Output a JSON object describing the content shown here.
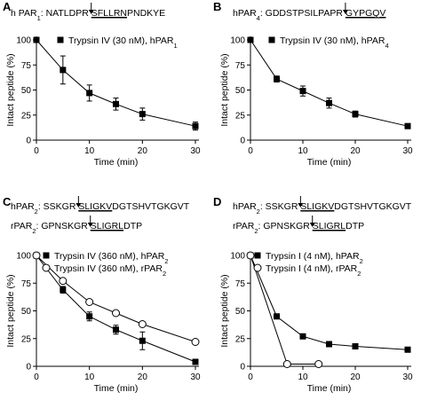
{
  "chart_data": [
    {
      "panel": "A",
      "type": "line",
      "sequence_lines": [
        {
          "parts": [
            {
              "text": "h PAR"
            },
            {
              "text": "1",
              "sub": true
            },
            {
              "text": ": NATLDPR "
            },
            {
              "text": "SFLLRN",
              "underline": true
            },
            {
              "text": "PNDKYE"
            }
          ],
          "cleavage_after": 2
        }
      ],
      "xlabel": "Time (min)",
      "ylabel": "Intact peptide (%)",
      "xlim": [
        0,
        30
      ],
      "ylim": [
        0,
        100
      ],
      "xticks": [
        "0",
        "10",
        "20",
        "30"
      ],
      "yticks": [
        "0",
        "25",
        "50",
        "75",
        "100"
      ],
      "legend_position": "top-right",
      "series": [
        {
          "name": "Trypsin IV (30 nM), hPAR",
          "name_sub": "1",
          "marker": "square-filled",
          "x": [
            0,
            5,
            10,
            15,
            20,
            30
          ],
          "y": [
            100,
            70,
            47,
            36,
            26,
            14
          ],
          "err": [
            0,
            14,
            8,
            6,
            6,
            4
          ]
        }
      ]
    },
    {
      "panel": "B",
      "type": "line",
      "sequence_lines": [
        {
          "parts": [
            {
              "text": "hPAR"
            },
            {
              "text": "4",
              "sub": true
            },
            {
              "text": ": GDDSTPSILPAPR "
            },
            {
              "text": "GYPGQV",
              "underline": true
            }
          ],
          "cleavage_after": 2
        }
      ],
      "xlabel": "Time (min)",
      "ylabel": "Intact peptide (%)",
      "xlim": [
        0,
        30
      ],
      "ylim": [
        0,
        100
      ],
      "xticks": [
        "0",
        "10",
        "20",
        "30"
      ],
      "yticks": [
        "0",
        "25",
        "50",
        "75",
        "100"
      ],
      "legend_position": "top-right",
      "series": [
        {
          "name": "Trypsin IV (30 nM), hPAR",
          "name_sub": "4",
          "marker": "square-filled",
          "x": [
            0,
            5,
            10,
            15,
            20,
            30
          ],
          "y": [
            100,
            61,
            49,
            37,
            26,
            14
          ],
          "err": [
            0,
            3,
            5,
            5,
            3,
            2
          ]
        }
      ]
    },
    {
      "panel": "C",
      "type": "line",
      "sequence_lines": [
        {
          "parts": [
            {
              "text": "hPAR"
            },
            {
              "text": "2",
              "sub": true
            },
            {
              "text": ": SSKGR "
            },
            {
              "text": "SLIGKV",
              "underline": true
            },
            {
              "text": "DGTSHVTGKGVT"
            }
          ],
          "cleavage_after": 2
        },
        {
          "parts": [
            {
              "text": "rPAR"
            },
            {
              "text": "2",
              "sub": true
            },
            {
              "text": ": GPNSKGR "
            },
            {
              "text": "SLIGRL",
              "underline": true
            },
            {
              "text": "DTP"
            }
          ],
          "cleavage_after": 2
        }
      ],
      "xlabel": "Time (min)",
      "ylabel": "Intact peptide (%)",
      "xlim": [
        0,
        30
      ],
      "ylim": [
        0,
        100
      ],
      "xticks": [
        "0",
        "10",
        "20",
        "30"
      ],
      "yticks": [
        "0",
        "25",
        "50",
        "75",
        "100"
      ],
      "legend_position": "top-right",
      "series": [
        {
          "name": "Trypsin IV (360 nM), hPAR",
          "name_sub": "2",
          "marker": "square-filled",
          "x": [
            0,
            5,
            10,
            15,
            20,
            30
          ],
          "y": [
            100,
            69,
            45,
            33,
            23,
            4
          ],
          "err": [
            0,
            3,
            4,
            4,
            8,
            1
          ]
        },
        {
          "name": "Trypsin IV (360 nM), rPAR",
          "name_sub": "2",
          "marker": "circle-open",
          "x": [
            0,
            5,
            10,
            15,
            20,
            30
          ],
          "y": [
            100,
            77,
            58,
            48,
            38,
            22
          ],
          "err": [
            0,
            2,
            2,
            2,
            2,
            2
          ]
        }
      ]
    },
    {
      "panel": "D",
      "type": "line",
      "sequence_lines": [
        {
          "parts": [
            {
              "text": "hPAR"
            },
            {
              "text": "2",
              "sub": true
            },
            {
              "text": ": SSKGR "
            },
            {
              "text": "SLIGKV",
              "underline": true
            },
            {
              "text": "DGTSHVTGKGVT"
            }
          ],
          "cleavage_after": 2
        },
        {
          "parts": [
            {
              "text": "rPAR"
            },
            {
              "text": "2",
              "sub": true
            },
            {
              "text": ": GPNSKGR "
            },
            {
              "text": "SLIGRL",
              "underline": true
            },
            {
              "text": "DTP"
            }
          ],
          "cleavage_after": 2
        }
      ],
      "xlabel": "Time (min)",
      "ylabel": "Intact peptide (%)",
      "xlim": [
        0,
        30
      ],
      "ylim": [
        0,
        100
      ],
      "xticks": [
        "0",
        "10",
        "20",
        "30"
      ],
      "yticks": [
        "0",
        "25",
        "50",
        "75",
        "100"
      ],
      "legend_position": "top-right",
      "series": [
        {
          "name": "Trypsin I (4 nM), hPAR",
          "name_sub": "2",
          "marker": "square-filled",
          "x": [
            0,
            5,
            10,
            15,
            20,
            30
          ],
          "y": [
            100,
            45,
            27,
            20,
            18,
            15
          ],
          "err": [
            0,
            0,
            0,
            0,
            0,
            0
          ]
        },
        {
          "name": "Trypsin I (4 nM), rPAR",
          "name_sub": "2",
          "marker": "circle-open",
          "x": [
            0,
            7,
            13
          ],
          "y": [
            100,
            2,
            2
          ],
          "err": [
            0,
            0,
            0
          ]
        }
      ]
    }
  ]
}
